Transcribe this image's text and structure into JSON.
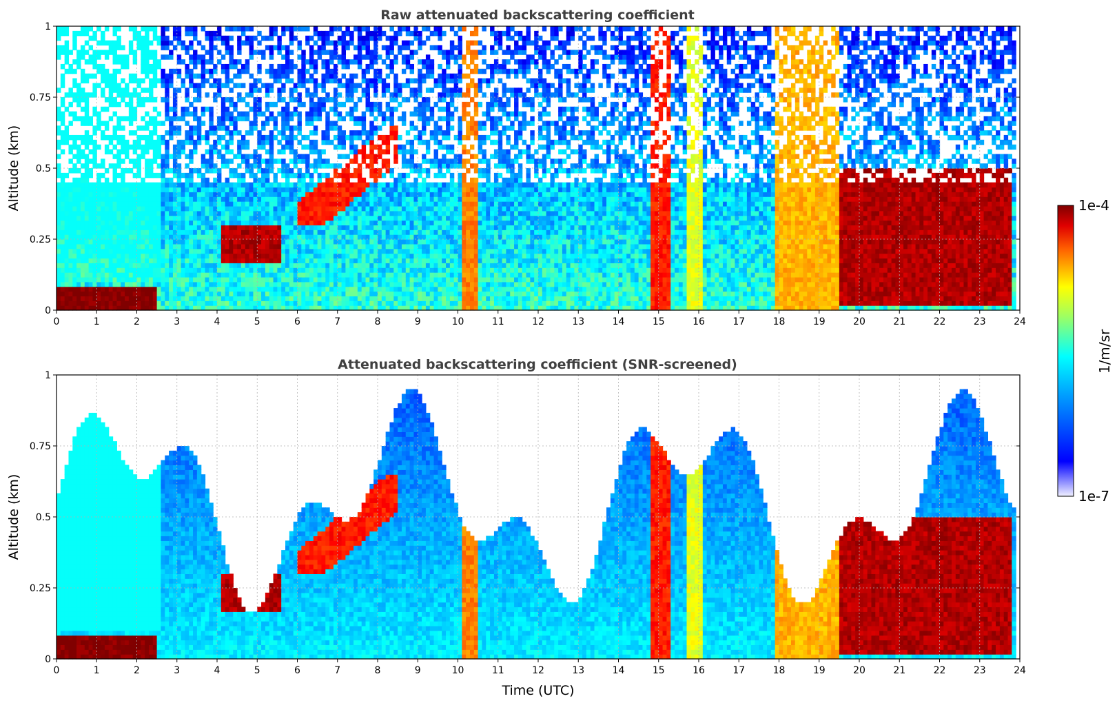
{
  "chart_data": [
    {
      "type": "heatmap",
      "title": "Raw attenuated backscattering coefficient",
      "xlabel": "",
      "ylabel": "Altitude (km)",
      "xlim": [
        0,
        24
      ],
      "ylim": [
        0,
        1
      ],
      "xticks": [
        "0",
        "1",
        "2",
        "3",
        "4",
        "5",
        "6",
        "7",
        "8",
        "9",
        "10",
        "11",
        "12",
        "13",
        "14",
        "15",
        "16",
        "17",
        "18",
        "19",
        "20",
        "21",
        "22",
        "23",
        "24"
      ],
      "yticks": [
        "0",
        "0.25",
        "0.5",
        "0.75",
        "1"
      ],
      "grid": true,
      "colorscale": "jet",
      "features": [
        {
          "label": "surface layer",
          "x": [
            0,
            2.5
          ],
          "y": [
            0,
            0.08
          ],
          "level": 1.0
        },
        {
          "label": "low cloud",
          "x": [
            4.1,
            5.6
          ],
          "y": [
            0.17,
            0.3
          ],
          "level": 0.95
        },
        {
          "label": "rising layer",
          "x": [
            6.0,
            8.5
          ],
          "y": [
            0.3,
            0.65
          ],
          "level": 0.85
        },
        {
          "label": "precipitation",
          "x": [
            10.15,
            10.45
          ],
          "y": [
            0,
            1
          ],
          "level": 0.75
        },
        {
          "label": "precipitation",
          "x": [
            14.85,
            15.25
          ],
          "y": [
            0,
            1
          ],
          "level": 0.85
        },
        {
          "label": "precipitation",
          "x": [
            15.75,
            16.05
          ],
          "y": [
            0,
            1
          ],
          "level": 0.6
        },
        {
          "label": "precipitation",
          "x": [
            17.9,
            19.45
          ],
          "y": [
            0,
            1
          ],
          "level": 0.7
        },
        {
          "label": "cloud layer",
          "x": [
            19.5,
            23.8
          ],
          "y": [
            0.02,
            0.5
          ],
          "level": 0.95
        }
      ]
    },
    {
      "type": "heatmap",
      "title": "Attenuated backscattering coefficient (SNR-screened)",
      "xlabel": "Time (UTC)",
      "ylabel": "Altitude (km)",
      "xlim": [
        0,
        24
      ],
      "ylim": [
        0,
        1
      ],
      "xticks": [
        "0",
        "1",
        "2",
        "3",
        "4",
        "5",
        "6",
        "7",
        "8",
        "9",
        "10",
        "11",
        "12",
        "13",
        "14",
        "15",
        "16",
        "17",
        "18",
        "19",
        "20",
        "21",
        "22",
        "23",
        "24"
      ],
      "yticks": [
        "0",
        "0.25",
        "0.5",
        "0.75",
        "1"
      ],
      "grid": true,
      "colorscale": "jet",
      "masked": "values below SNR threshold shown white"
    }
  ],
  "colorbar": {
    "label": "1/m/sr",
    "max_label": "1e-4",
    "min_label": "1e-7",
    "min": 1e-07,
    "max": 0.0001,
    "scale": "log"
  }
}
